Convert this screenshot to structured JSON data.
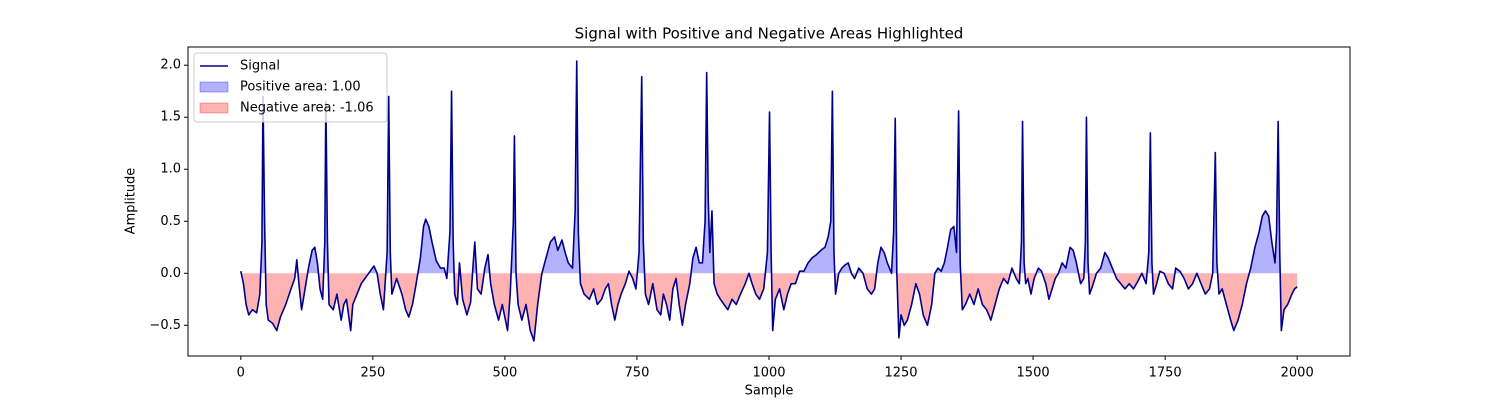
{
  "chart_data": {
    "type": "line",
    "title": "Signal with Positive and Negative Areas Highlighted",
    "xlabel": "Sample",
    "ylabel": "Amplitude",
    "x": [
      0,
      5,
      10,
      15,
      22,
      30,
      36,
      40,
      42,
      45,
      48,
      52,
      60,
      68,
      75,
      85,
      95,
      102,
      106,
      110,
      115,
      120,
      128,
      135,
      140,
      145,
      150,
      155,
      159,
      161,
      164,
      167,
      175,
      182,
      190,
      195,
      200,
      208,
      212,
      220,
      228,
      235,
      245,
      252,
      258,
      264,
      270,
      277,
      280,
      283,
      286,
      295,
      305,
      312,
      318,
      325,
      332,
      340,
      346,
      350,
      356,
      362,
      370,
      378,
      385,
      390,
      396,
      399,
      402,
      405,
      410,
      414,
      420,
      428,
      435,
      440,
      443,
      448,
      455,
      462,
      468,
      473,
      480,
      488,
      495,
      505,
      510,
      516,
      518,
      521,
      525,
      532,
      540,
      548,
      555,
      562,
      570,
      578,
      586,
      594,
      600,
      608,
      614,
      620,
      628,
      633,
      636,
      639,
      643,
      650,
      660,
      668,
      675,
      683,
      690,
      696,
      702,
      708,
      714,
      720,
      728,
      735,
      742,
      748,
      754,
      759,
      762,
      766,
      772,
      780,
      788,
      795,
      800,
      806,
      812,
      818,
      824,
      830,
      836,
      842,
      850,
      856,
      862,
      868,
      874,
      879,
      882,
      885,
      888,
      892,
      896,
      902,
      908,
      915,
      922,
      930,
      938,
      946,
      955,
      962,
      968,
      975,
      982,
      990,
      997,
      1001,
      1004,
      1007,
      1012,
      1020,
      1028,
      1035,
      1042,
      1050,
      1058,
      1066,
      1074,
      1082,
      1090,
      1098,
      1106,
      1112,
      1117,
      1120,
      1123,
      1126,
      1132,
      1138,
      1144,
      1150,
      1156,
      1162,
      1170,
      1178,
      1186,
      1194,
      1200,
      1206,
      1212,
      1218,
      1224,
      1232,
      1236,
      1239,
      1242,
      1246,
      1250,
      1256,
      1262,
      1270,
      1278,
      1285,
      1292,
      1300,
      1308,
      1314,
      1320,
      1326,
      1332,
      1338,
      1344,
      1350,
      1355,
      1359,
      1362,
      1366,
      1372,
      1380,
      1388,
      1396,
      1404,
      1412,
      1420,
      1428,
      1436,
      1444,
      1452,
      1460,
      1468,
      1474,
      1478,
      1480,
      1483,
      1486,
      1490,
      1496,
      1502,
      1510,
      1516,
      1524,
      1530,
      1536,
      1542,
      1548,
      1555,
      1562,
      1570,
      1576,
      1582,
      1590,
      1596,
      1599,
      1601,
      1604,
      1607,
      1614,
      1620,
      1628,
      1636,
      1642,
      1650,
      1658,
      1666,
      1674,
      1682,
      1690,
      1698,
      1706,
      1714,
      1719,
      1722,
      1725,
      1728,
      1734,
      1740,
      1748,
      1756,
      1764,
      1770,
      1778,
      1786,
      1794,
      1802,
      1810,
      1818,
      1826,
      1834,
      1840,
      1845,
      1848,
      1852,
      1858,
      1866,
      1874,
      1880,
      1888,
      1896,
      1904,
      1912,
      1920,
      1928,
      1934,
      1940,
      1946,
      1952,
      1958,
      1961,
      1964,
      1967,
      1970,
      1975,
      1982,
      1990,
      1995,
      2000
    ],
    "series": [
      {
        "name": "Signal",
        "color": "#00008b",
        "values": [
          0.02,
          -0.1,
          -0.3,
          -0.4,
          -0.35,
          -0.38,
          -0.2,
          0.3,
          1.7,
          0.5,
          -0.3,
          -0.45,
          -0.48,
          -0.55,
          -0.42,
          -0.3,
          -0.15,
          -0.05,
          0.13,
          -0.1,
          -0.35,
          -0.2,
          0.05,
          0.22,
          0.25,
          0.1,
          -0.15,
          -0.25,
          0.3,
          1.65,
          0.3,
          -0.3,
          -0.35,
          -0.2,
          -0.45,
          -0.3,
          -0.25,
          -0.55,
          -0.3,
          -0.2,
          -0.1,
          -0.05,
          0.02,
          0.07,
          0.0,
          -0.2,
          -0.35,
          0.2,
          1.7,
          0.2,
          -0.2,
          -0.05,
          -0.2,
          -0.35,
          -0.42,
          -0.3,
          -0.1,
          0.15,
          0.45,
          0.52,
          0.45,
          0.3,
          0.12,
          0.05,
          0.05,
          -0.05,
          0.4,
          1.75,
          0.3,
          -0.2,
          -0.3,
          0.1,
          -0.25,
          -0.4,
          -0.28,
          0.1,
          0.3,
          -0.15,
          -0.2,
          0.05,
          0.18,
          -0.1,
          -0.3,
          -0.45,
          -0.3,
          -0.55,
          -0.2,
          0.5,
          1.32,
          0.0,
          -0.3,
          -0.45,
          -0.3,
          -0.55,
          -0.65,
          -0.3,
          0.0,
          0.15,
          0.3,
          0.35,
          0.22,
          0.32,
          0.2,
          0.1,
          0.05,
          0.6,
          2.04,
          0.4,
          -0.1,
          -0.2,
          -0.25,
          -0.15,
          -0.3,
          -0.25,
          -0.15,
          -0.1,
          -0.3,
          -0.45,
          -0.3,
          -0.2,
          -0.1,
          0.02,
          -0.05,
          -0.15,
          0.2,
          1.89,
          0.3,
          -0.2,
          -0.3,
          -0.1,
          -0.35,
          -0.4,
          -0.2,
          -0.3,
          -0.45,
          -0.15,
          -0.05,
          -0.3,
          -0.5,
          -0.3,
          -0.1,
          0.15,
          0.25,
          0.1,
          0.1,
          0.5,
          1.93,
          0.7,
          0.2,
          0.6,
          -0.1,
          -0.2,
          -0.25,
          -0.3,
          -0.35,
          -0.25,
          -0.3,
          -0.2,
          -0.1,
          0.0,
          -0.1,
          -0.2,
          -0.25,
          -0.15,
          0.2,
          1.55,
          0.2,
          -0.55,
          -0.25,
          -0.15,
          -0.35,
          -0.2,
          -0.1,
          -0.1,
          0.02,
          0.02,
          0.1,
          0.15,
          0.18,
          0.22,
          0.25,
          0.35,
          0.5,
          1.75,
          0.2,
          -0.2,
          0.0,
          0.05,
          0.08,
          0.1,
          0.0,
          -0.05,
          0.05,
          0.0,
          -0.15,
          -0.2,
          -0.15,
          0.1,
          0.25,
          0.2,
          0.1,
          0.0,
          0.4,
          1.49,
          0.0,
          -0.62,
          -0.4,
          -0.5,
          -0.45,
          -0.3,
          -0.1,
          -0.2,
          -0.4,
          -0.5,
          -0.3,
          0.0,
          0.05,
          0.02,
          0.1,
          0.25,
          0.42,
          0.45,
          0.2,
          1.56,
          0.1,
          -0.35,
          -0.3,
          -0.2,
          -0.3,
          -0.15,
          -0.3,
          -0.35,
          -0.45,
          -0.3,
          -0.15,
          -0.05,
          -0.1,
          0.05,
          -0.05,
          -0.1,
          0.3,
          1.46,
          0.1,
          -0.1,
          -0.05,
          -0.2,
          -0.05,
          0.05,
          0.02,
          -0.1,
          -0.25,
          -0.15,
          -0.05,
          0.0,
          0.1,
          0.05,
          0.25,
          0.22,
          0.1,
          -0.1,
          -0.05,
          0.3,
          1.5,
          0.1,
          -0.2,
          -0.1,
          0.0,
          0.05,
          0.2,
          0.15,
          0.05,
          -0.05,
          -0.1,
          -0.15,
          -0.1,
          -0.15,
          -0.08,
          0.0,
          -0.1,
          0.2,
          1.35,
          0.1,
          -0.2,
          -0.1,
          0.02,
          0.0,
          -0.1,
          -0.15,
          0.05,
          0.02,
          -0.05,
          -0.15,
          -0.1,
          0.0,
          -0.1,
          -0.2,
          -0.15,
          0.0,
          1.16,
          0.1,
          -0.2,
          -0.15,
          -0.3,
          -0.45,
          -0.55,
          -0.45,
          -0.3,
          -0.1,
          0.05,
          0.25,
          0.4,
          0.55,
          0.6,
          0.55,
          0.3,
          0.1,
          0.4,
          1.46,
          0.2,
          -0.55,
          -0.35,
          -0.3,
          -0.2,
          -0.15,
          -0.13
        ]
      }
    ],
    "fills": [
      {
        "name": "Positive area: 1.00",
        "color": "#0000ff",
        "alpha": 0.3,
        "where": "above"
      },
      {
        "name": "Negative area: -1.06",
        "color": "#ff0000",
        "alpha": 0.3,
        "where": "below"
      }
    ],
    "xlim": [
      -100,
      2100
    ],
    "ylim": [
      -0.795,
      2.175
    ],
    "xticks": [
      0,
      250,
      500,
      750,
      1000,
      1250,
      1500,
      1750,
      2000
    ],
    "yticks": [
      {
        "value": -0.5,
        "label": "−0.5"
      },
      {
        "value": 0,
        "label": "0.0"
      },
      0.5,
      {
        "value": 1,
        "label": "1.0"
      },
      1.5,
      {
        "value": 2,
        "label": "2.0"
      }
    ],
    "legend": "upper left"
  }
}
